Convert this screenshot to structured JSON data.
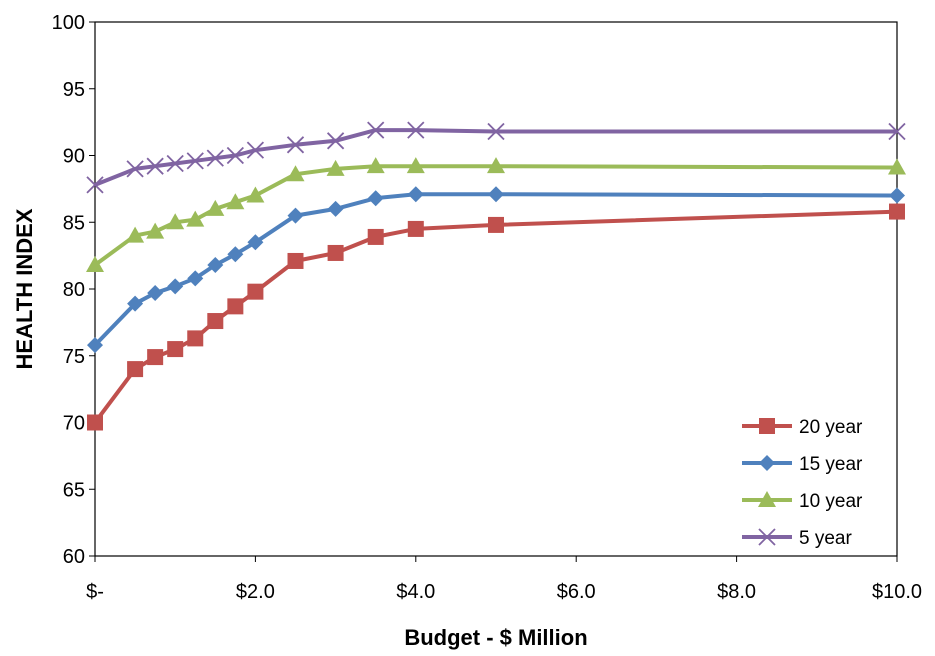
{
  "chart_data": {
    "type": "line",
    "title": "",
    "xlabel": "Budget - $ Million",
    "ylabel": "HEALTH INDEX",
    "xlim": [
      0,
      10
    ],
    "ylim": [
      60,
      100
    ],
    "x_ticks": [
      0,
      2,
      4,
      6,
      8,
      10
    ],
    "x_tick_labels": [
      "$-",
      "$2.0",
      "$4.0",
      "$6.0",
      "$8.0",
      "$10.0"
    ],
    "y_ticks": [
      60,
      65,
      70,
      75,
      80,
      85,
      90,
      95,
      100
    ],
    "y_tick_labels": [
      "60",
      "65",
      "70",
      "75",
      "80",
      "85",
      "90",
      "95",
      "100"
    ],
    "grid": false,
    "legend_position": "bottom-right",
    "series": [
      {
        "name": "20 year",
        "color": "#c0504d",
        "marker": "square",
        "x": [
          0,
          0.5,
          0.75,
          1.0,
          1.25,
          1.5,
          1.75,
          2.0,
          2.5,
          3.0,
          3.5,
          4.0,
          5.0,
          10.0
        ],
        "values": [
          70.0,
          74.0,
          74.9,
          75.5,
          76.3,
          77.6,
          78.7,
          79.8,
          82.1,
          82.7,
          83.9,
          84.5,
          84.8,
          85.8
        ]
      },
      {
        "name": "15 year",
        "color": "#4f81bd",
        "marker": "diamond",
        "x": [
          0,
          0.5,
          0.75,
          1.0,
          1.25,
          1.5,
          1.75,
          2.0,
          2.5,
          3.0,
          3.5,
          4.0,
          5.0,
          10.0
        ],
        "values": [
          75.8,
          78.9,
          79.7,
          80.2,
          80.8,
          81.8,
          82.6,
          83.5,
          85.5,
          86.0,
          86.8,
          87.1,
          87.1,
          87.0
        ]
      },
      {
        "name": "10 year",
        "color": "#9bbb59",
        "marker": "triangle",
        "x": [
          0,
          0.5,
          0.75,
          1.0,
          1.25,
          1.5,
          1.75,
          2.0,
          2.5,
          3.0,
          3.5,
          4.0,
          5.0,
          10.0
        ],
        "values": [
          81.8,
          84.0,
          84.3,
          85.0,
          85.2,
          86.0,
          86.5,
          87.0,
          88.6,
          89.0,
          89.2,
          89.2,
          89.2,
          89.1
        ]
      },
      {
        "name": "5 year",
        "color": "#8064a2",
        "marker": "x",
        "x": [
          0,
          0.5,
          0.75,
          1.0,
          1.25,
          1.5,
          1.75,
          2.0,
          2.5,
          3.0,
          3.5,
          4.0,
          5.0,
          10.0
        ],
        "values": [
          87.8,
          89.0,
          89.2,
          89.4,
          89.6,
          89.8,
          90.0,
          90.4,
          90.8,
          91.1,
          91.9,
          91.9,
          91.8,
          91.8
        ]
      }
    ]
  }
}
